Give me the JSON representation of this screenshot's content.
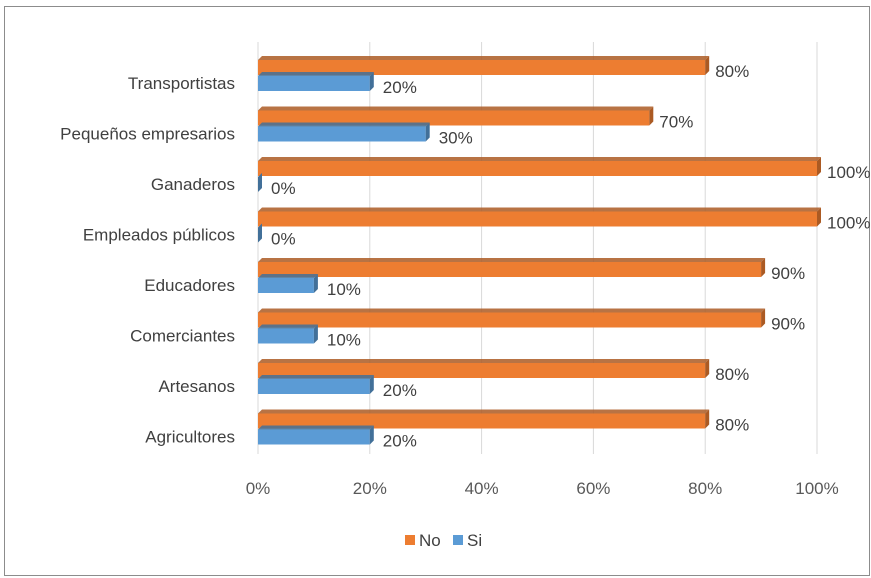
{
  "chart_data": {
    "type": "bar",
    "orientation": "horizontal",
    "categories": [
      "Transportistas",
      "Pequeños empresarios",
      "Ganaderos",
      "Empleados públicos",
      "Educadores",
      "Comerciantes",
      "Artesanos",
      "Agricultores"
    ],
    "series": [
      {
        "name": "No",
        "color": "#ED7D31",
        "values": [
          80,
          70,
          100,
          100,
          90,
          90,
          80,
          80
        ]
      },
      {
        "name": "Si",
        "color": "#5B9BD5",
        "values": [
          20,
          30,
          0,
          0,
          10,
          10,
          20,
          20
        ]
      }
    ],
    "xlim": [
      0,
      100
    ],
    "xticks": [
      0,
      20,
      40,
      60,
      80,
      100
    ],
    "tick_suffix": "%",
    "data_labels": {
      "No": [
        "80%",
        "70%",
        "100%",
        "100%",
        "90%",
        "90%",
        "80%",
        "80%"
      ],
      "Si": [
        "20%",
        "30%",
        "0%",
        "0%",
        "10%",
        "10%",
        "20%",
        "20%"
      ]
    },
    "gridlines": "vertical",
    "legend": {
      "position": "bottom",
      "entries": [
        "No",
        "Si"
      ]
    }
  }
}
